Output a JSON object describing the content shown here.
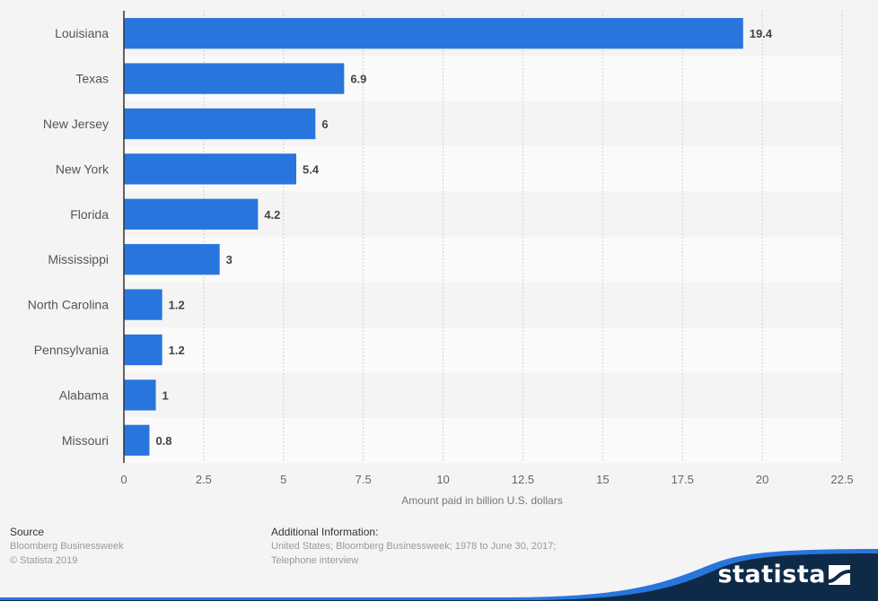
{
  "chart_data": {
    "type": "bar",
    "orientation": "horizontal",
    "categories": [
      "Louisiana",
      "Texas",
      "New Jersey",
      "New York",
      "Florida",
      "Mississippi",
      "North Carolina",
      "Pennsylvania",
      "Alabama",
      "Missouri"
    ],
    "values": [
      19.4,
      6.9,
      6,
      5.4,
      4.2,
      3,
      1.2,
      1.2,
      1,
      0.8
    ],
    "value_labels": [
      "19.4",
      "6.9",
      "6",
      "5.4",
      "4.2",
      "3",
      "1.2",
      "1.2",
      "1",
      "0.8"
    ],
    "title": "",
    "xlabel": "Amount paid in billion U.S. dollars",
    "ylabel": "",
    "xlim": [
      0,
      22.5
    ],
    "xticks": [
      0,
      2.5,
      5,
      7.5,
      10,
      12.5,
      15,
      17.5,
      20,
      22.5
    ],
    "xtick_labels": [
      "0",
      "2.5",
      "5",
      "7.5",
      "10",
      "12.5",
      "15",
      "17.5",
      "20",
      "22.5"
    ],
    "grid": true,
    "legend": "none",
    "bar_color": "#2876dd"
  },
  "footer": {
    "source_heading": "Source",
    "source_lines": [
      "Bloomberg Businessweek",
      "© Statista 2019"
    ],
    "additional_heading": "Additional Information:",
    "additional_lines": [
      "United States; Bloomberg Businessweek; 1978 to June 30, 2017;",
      "Telephone interview"
    ]
  },
  "brand": {
    "name": "statista",
    "dark_color": "#0f2a47",
    "accent_color": "#2876dd"
  }
}
